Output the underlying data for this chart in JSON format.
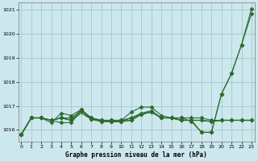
{
  "title": "Graphe pression niveau de la mer (hPa)",
  "bg_color": "#cce8ee",
  "grid_color": "#aacccc",
  "line_color": "#2d6a2d",
  "ylim": [
    1015.5,
    1021.3
  ],
  "yticks": [
    1016,
    1017,
    1018,
    1019,
    1020,
    1021
  ],
  "xlim": [
    -0.3,
    23.3
  ],
  "xticks": [
    0,
    1,
    2,
    3,
    4,
    5,
    6,
    7,
    8,
    9,
    10,
    11,
    12,
    13,
    14,
    15,
    16,
    17,
    18,
    19,
    20,
    21,
    22,
    23
  ],
  "series": [
    {
      "y": [
        1015.8,
        1016.5,
        1016.5,
        1016.4,
        1016.5,
        1016.5,
        1016.8,
        1016.5,
        1016.4,
        1016.4,
        1016.4,
        1016.5,
        1016.7,
        1016.8,
        1016.5,
        1016.5,
        1016.5,
        1016.5,
        1016.5,
        1016.4,
        1016.4,
        1016.4,
        1016.4,
        1016.4
      ],
      "marker": "D",
      "markersize": 2.5,
      "linewidth": 0.8,
      "linestyle": "-"
    },
    {
      "y": [
        1015.8,
        1016.5,
        1016.5,
        1016.3,
        1016.7,
        1016.6,
        1016.85,
        1016.5,
        1016.4,
        1016.4,
        1016.4,
        1016.75,
        1016.95,
        1016.95,
        1016.6,
        1016.5,
        1016.5,
        1016.35,
        1015.9,
        1015.9,
        1017.5,
        1018.35,
        1019.55,
        1020.85
      ],
      "marker": "D",
      "markersize": 2.5,
      "linewidth": 0.8,
      "linestyle": "-"
    },
    {
      "y": [
        1015.8,
        1016.5,
        1016.5,
        1016.4,
        1016.3,
        1016.3,
        1016.8,
        1016.45,
        1016.35,
        1016.35,
        1016.35,
        1016.4,
        1016.65,
        1016.75,
        1016.5,
        1016.5,
        1016.4,
        1016.4,
        1016.4,
        1016.35,
        1016.4,
        1016.4,
        1016.4,
        1016.4
      ],
      "marker": "D",
      "markersize": 2.5,
      "linewidth": 0.8,
      "linestyle": "-"
    },
    {
      "y": [
        1015.8,
        1016.5,
        1016.5,
        1016.4,
        1016.5,
        1016.4,
        1016.85,
        1016.45,
        1016.35,
        1016.35,
        1016.35,
        1016.4,
        1016.65,
        1016.75,
        1016.5,
        1016.5,
        1016.4,
        1016.4,
        1015.9,
        1015.9,
        1017.5,
        1018.35,
        1019.55,
        1021.05
      ],
      "marker": "D",
      "markersize": 2.5,
      "linewidth": 0.8,
      "linestyle": "-"
    },
    {
      "y": [
        1015.8,
        1016.5,
        1016.5,
        1016.4,
        1016.5,
        1016.4,
        1016.7,
        1016.45,
        1016.4,
        1016.35,
        1016.35,
        1016.5,
        1016.65,
        1016.75,
        1016.5,
        1016.5,
        1016.4,
        1016.4,
        1016.4,
        1016.35,
        1016.4,
        1016.4,
        1016.4,
        1016.4
      ],
      "marker": null,
      "markersize": 0,
      "linewidth": 0.9,
      "linestyle": "-"
    }
  ]
}
